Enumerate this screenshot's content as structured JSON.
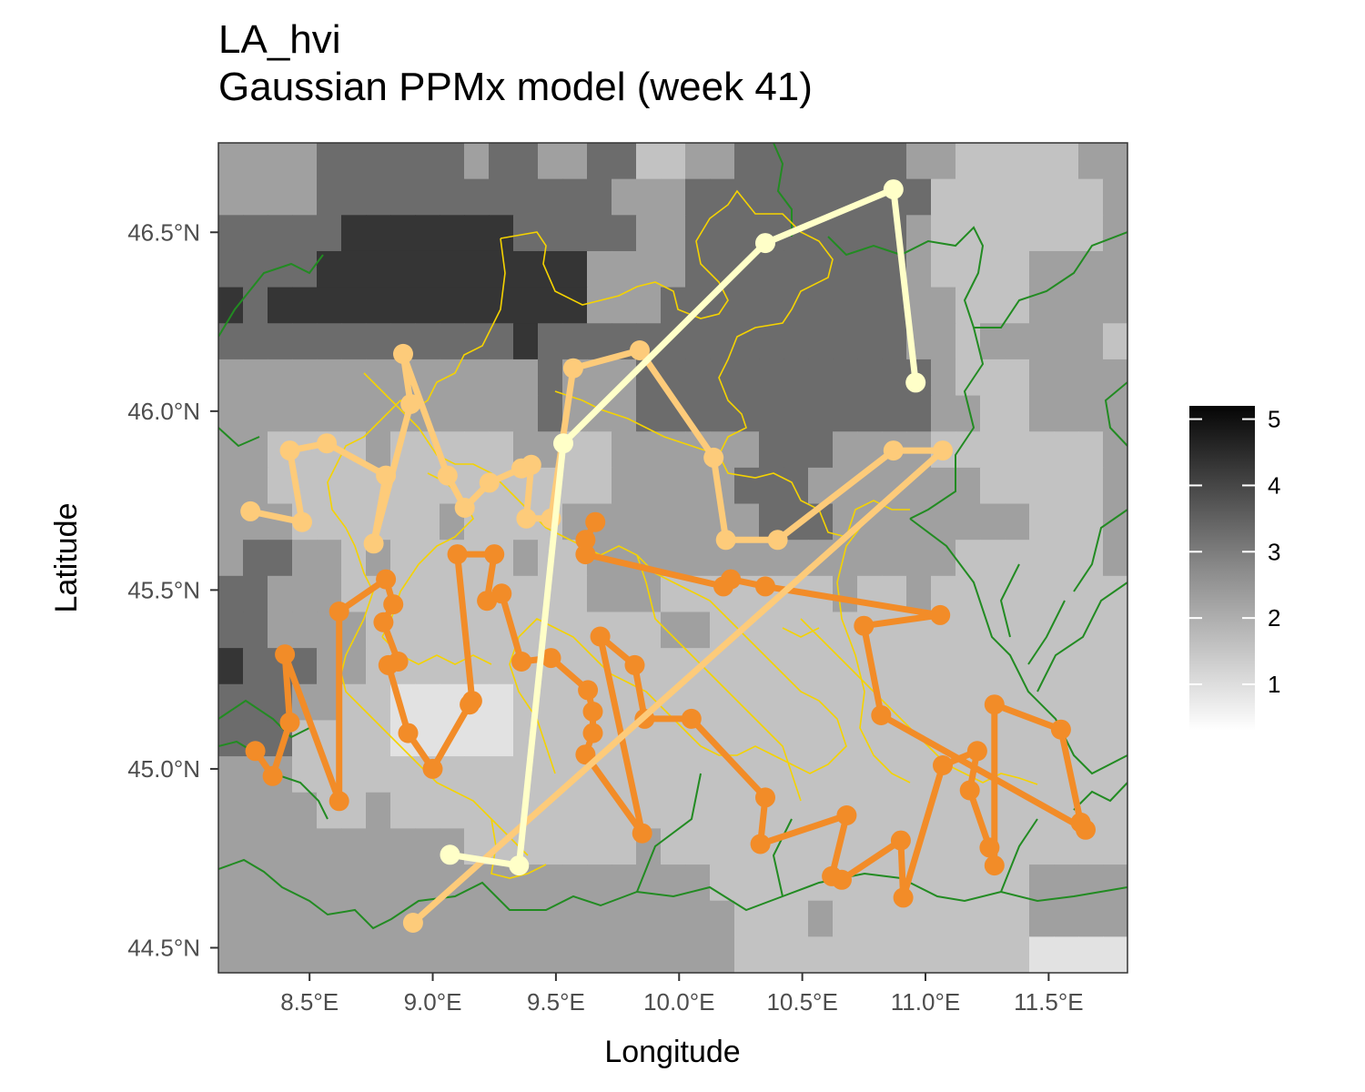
{
  "title": {
    "line1": "LA_hvi",
    "line2": "Gaussian PPMx model (week 41)"
  },
  "chart_data": {
    "type": "map",
    "xlabel": "Longitude",
    "ylabel": "Latitude",
    "xlim": [
      8.13,
      11.82
    ],
    "ylim": [
      44.43,
      46.75
    ],
    "x_ticks": [
      {
        "v": 8.5,
        "label": "8.5°E"
      },
      {
        "v": 9.0,
        "label": "9.0°E"
      },
      {
        "v": 9.5,
        "label": "9.5°E"
      },
      {
        "v": 10.0,
        "label": "10.0°E"
      },
      {
        "v": 10.5,
        "label": "10.5°E"
      },
      {
        "v": 11.0,
        "label": "11.0°E"
      },
      {
        "v": 11.5,
        "label": "11.5°E"
      }
    ],
    "y_ticks": [
      {
        "v": 44.5,
        "label": "44.5°N"
      },
      {
        "v": 45.0,
        "label": "45.0°N"
      },
      {
        "v": 45.5,
        "label": "45.5°N"
      },
      {
        "v": 46.0,
        "label": "46.0°N"
      },
      {
        "v": 46.5,
        "label": "46.5°N"
      }
    ],
    "raster": {
      "name": "LA_hvi",
      "lon_min": 8.13,
      "lon_max": 11.82,
      "lat_min": 44.43,
      "lat_max": 46.75,
      "cols": 37,
      "rows": 23,
      "grid": [
        "3333444444344334422334444444332222233",
        "3333444444444444333444444444422222223",
        "4444455555554444433444444444322222223",
        "4444555555555553333444444444322223333",
        "5455555555555553334444444444332223333",
        "4444444444445444444444444444332333332",
        "3333333333333433344444444444432223333",
        "3333333333333433344444444444433223333",
        "3322223222223322333333444333322222223",
        "3322222222222222333334443333333222223",
        "3332222223222233333333444333333332223",
        "3443323222223223333333333333332222223",
        "4433322222222223332222222322322222222",
        "4433332222222222223322222222222222222",
        "5444332222222222222222222222222222222",
        "4443322111112222222222222222222222222",
        "4442222111112222222222222222222222222",
        "3332222222222222222222222222222222222",
        "3333223222222222222222222222222222222",
        "3333333333222222232222222222222222222",
        "3333333333333333333322222222222223333",
        "3333333333333333333332223222222223333",
        "3333333333333333333332222222222221111"
      ],
      "legend": {
        "min": 0.3,
        "max": 5.2,
        "ticks": [
          1,
          2,
          3,
          4,
          5
        ]
      }
    },
    "series": [
      {
        "color": "#F28C28",
        "points": [
          [
            8.28,
            45.05
          ],
          [
            8.35,
            44.98
          ],
          [
            8.42,
            45.13
          ],
          [
            8.4,
            45.32
          ],
          [
            8.62,
            44.91
          ],
          [
            8.62,
            45.44
          ],
          [
            8.81,
            45.53
          ],
          [
            8.84,
            45.46
          ],
          [
            8.8,
            45.41
          ],
          [
            8.86,
            45.3
          ],
          [
            8.82,
            45.29
          ],
          [
            8.9,
            45.1
          ],
          [
            9.0,
            45.0
          ],
          [
            9.15,
            45.18
          ],
          [
            9.16,
            45.19
          ],
          [
            9.1,
            45.6
          ],
          [
            9.25,
            45.6
          ],
          [
            9.22,
            45.47
          ],
          [
            9.28,
            45.49
          ],
          [
            9.36,
            45.3
          ],
          [
            9.48,
            45.31
          ],
          [
            9.63,
            45.22
          ],
          [
            9.65,
            45.16
          ],
          [
            9.65,
            45.1
          ],
          [
            9.62,
            45.04
          ],
          [
            9.85,
            44.82
          ],
          [
            9.68,
            45.37
          ],
          [
            9.82,
            45.29
          ],
          [
            9.86,
            45.14
          ],
          [
            10.05,
            45.14
          ],
          [
            10.35,
            44.92
          ],
          [
            10.33,
            44.79
          ],
          [
            10.68,
            44.87
          ],
          [
            10.62,
            44.7
          ],
          [
            10.66,
            44.69
          ],
          [
            10.9,
            44.8
          ],
          [
            10.91,
            44.64
          ],
          [
            11.07,
            45.01
          ],
          [
            11.21,
            45.05
          ],
          [
            11.18,
            44.94
          ],
          [
            11.26,
            44.78
          ],
          [
            11.28,
            44.73
          ],
          [
            11.28,
            45.18
          ],
          [
            11.55,
            45.11
          ],
          [
            11.63,
            44.85
          ],
          [
            11.65,
            44.83
          ],
          [
            10.82,
            45.15
          ],
          [
            10.75,
            45.4
          ],
          [
            11.06,
            45.43
          ],
          [
            10.35,
            45.51
          ],
          [
            10.21,
            45.53
          ],
          [
            10.18,
            45.51
          ],
          [
            9.62,
            45.6
          ],
          [
            9.62,
            45.64
          ],
          [
            9.66,
            45.69
          ]
        ]
      },
      {
        "color": "#FDCB7A",
        "points": [
          [
            8.26,
            45.72
          ],
          [
            8.47,
            45.69
          ],
          [
            8.42,
            45.89
          ],
          [
            8.57,
            45.91
          ],
          [
            8.81,
            45.82
          ],
          [
            8.76,
            45.63
          ],
          [
            8.91,
            46.02
          ],
          [
            8.88,
            46.16
          ],
          [
            9.06,
            45.82
          ],
          [
            9.13,
            45.73
          ],
          [
            9.23,
            45.8
          ],
          [
            9.36,
            45.84
          ],
          [
            9.4,
            45.85
          ],
          [
            9.38,
            45.7
          ],
          [
            9.48,
            45.7
          ],
          [
            9.57,
            46.12
          ],
          [
            9.84,
            46.17
          ],
          [
            10.14,
            45.87
          ],
          [
            10.19,
            45.64
          ],
          [
            10.4,
            45.64
          ],
          [
            10.87,
            45.89
          ],
          [
            11.07,
            45.89
          ],
          [
            8.92,
            44.57
          ]
        ]
      },
      {
        "color": "#FFFFC8",
        "points": [
          [
            9.07,
            44.76
          ],
          [
            9.35,
            44.73
          ],
          [
            9.53,
            45.91
          ],
          [
            10.35,
            46.47
          ],
          [
            10.87,
            46.62
          ],
          [
            10.96,
            46.08
          ]
        ]
      }
    ]
  }
}
